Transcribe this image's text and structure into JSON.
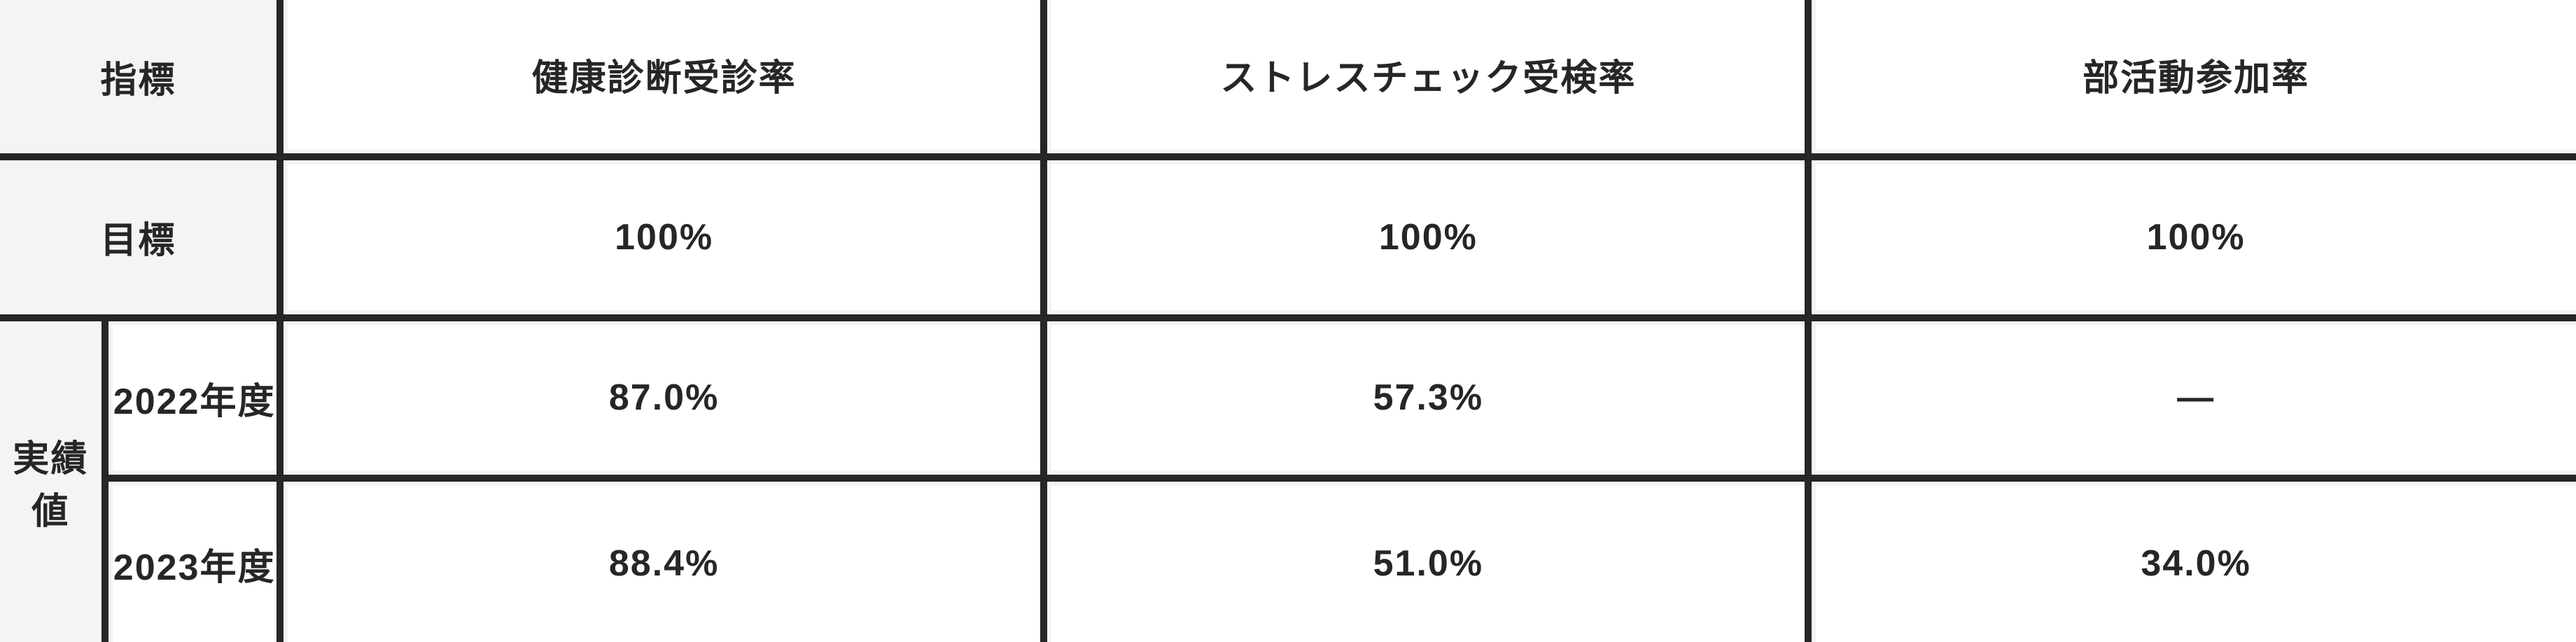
{
  "table": {
    "type": "table",
    "background_color": "#f3f4f6",
    "cell_background": "#ffffff",
    "border_color": "#262626",
    "text_color": "#262626",
    "font_weight": 700,
    "font_size_pt": 40,
    "columns": [
      {
        "key": "rowhead1",
        "width_pct": 4.2
      },
      {
        "key": "rowhead2",
        "width_pct": 6.8
      },
      {
        "key": "metric1",
        "width_pct": 29.67
      },
      {
        "key": "metric2",
        "width_pct": 29.67
      },
      {
        "key": "metric3",
        "width_pct": 29.67
      }
    ],
    "header": {
      "indicator_label": "指標",
      "metrics": [
        "健康診断受診率",
        "ストレスチェック受検率",
        "部活動参加率"
      ]
    },
    "target": {
      "label": "目標",
      "values": [
        "100%",
        "100%",
        "100%"
      ]
    },
    "actuals": {
      "label": "実績値",
      "years": [
        {
          "year_label": "2022年度",
          "values": [
            "87.0%",
            "57.3%",
            "―"
          ]
        },
        {
          "year_label": "2023年度",
          "values": [
            "88.4%",
            "51.0%",
            "34.0%"
          ]
        }
      ]
    }
  }
}
